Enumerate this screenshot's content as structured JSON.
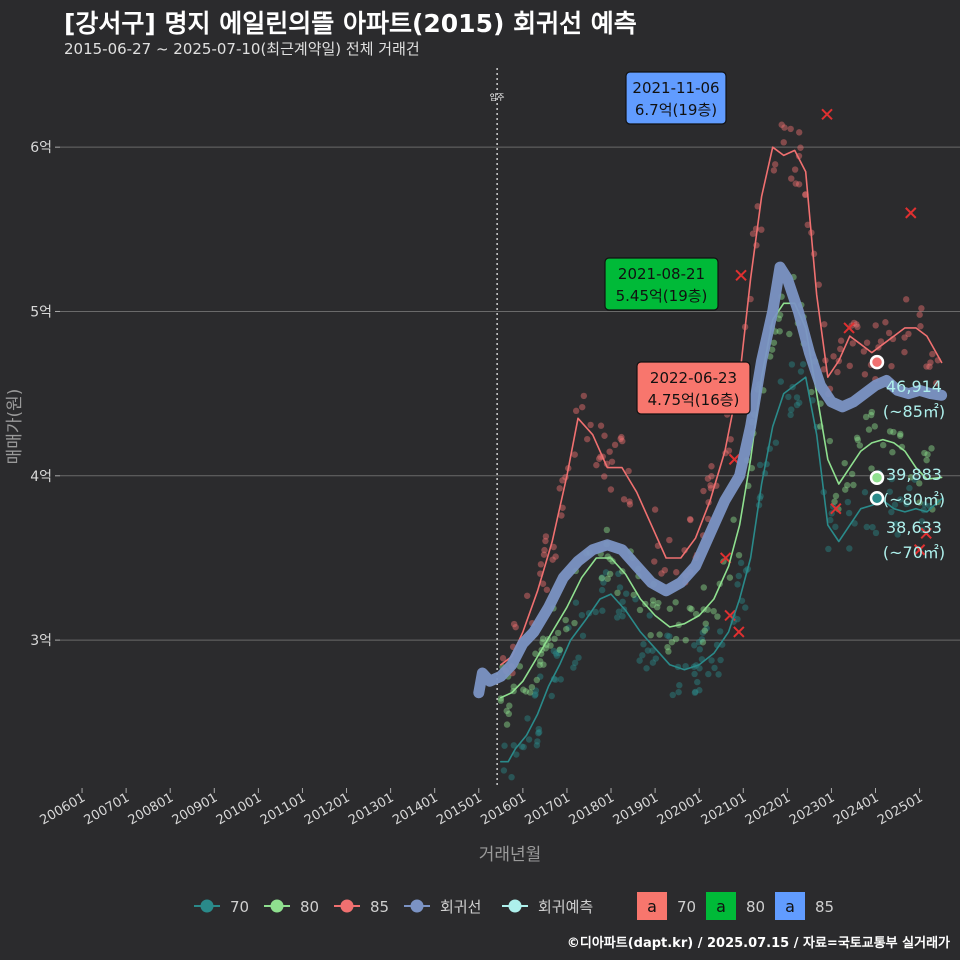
{
  "title": "[강서구] 명지 에일린의뜰 아파트(2015) 회귀선 예측",
  "subtitle": "2015-06-27 ~ 2025-07-10(최근계약일) 전체 거래건",
  "credit": "©디아파트(dapt.kr) / 2025.07.15 / 자료=국토교통부 실거래가",
  "colors": {
    "background": "#2b2b2d",
    "s70": "#2a8a8a",
    "s80": "#8fe08f",
    "s85": "#f07070",
    "regression": "#7b93c4",
    "forecast": "#aef0ec",
    "box70": "#f8766d",
    "box80": "#00ba38",
    "box85": "#619cff"
  },
  "chart_data": {
    "type": "line",
    "xlabel": "거래년월",
    "ylabel": "매매가(원)",
    "x_range": [
      "2005-07",
      "2025-12"
    ],
    "ylim": [
      2.1,
      6.5
    ],
    "y_ticks": [
      {
        "value": 3,
        "label": "3억"
      },
      {
        "value": 4,
        "label": "4억"
      },
      {
        "value": 5,
        "label": "5억"
      },
      {
        "value": 6,
        "label": "6억"
      }
    ],
    "x_ticks": [
      "200601",
      "200701",
      "200801",
      "200901",
      "201001",
      "201101",
      "201201",
      "201301",
      "201401",
      "201501",
      "201601",
      "201701",
      "201801",
      "201901",
      "202001",
      "202101",
      "202201",
      "202301",
      "202401",
      "202501"
    ],
    "event_line": {
      "date": "2015-06",
      "label": "입주"
    },
    "series": [
      {
        "name": "70",
        "color_key": "s70",
        "points": [
          [
            "2015-07",
            2.26
          ],
          [
            "2015-09",
            2.26
          ],
          [
            "2015-11",
            2.34
          ],
          [
            "2016-02",
            2.42
          ],
          [
            "2016-05",
            2.55
          ],
          [
            "2016-08",
            2.72
          ],
          [
            "2016-11",
            2.85
          ],
          [
            "2017-02",
            3.0
          ],
          [
            "2017-06",
            3.12
          ],
          [
            "2017-10",
            3.25
          ],
          [
            "2018-01",
            3.28
          ],
          [
            "2018-05",
            3.18
          ],
          [
            "2018-09",
            3.05
          ],
          [
            "2019-01",
            2.95
          ],
          [
            "2019-05",
            2.85
          ],
          [
            "2019-09",
            2.82
          ],
          [
            "2020-01",
            2.85
          ],
          [
            "2020-05",
            2.92
          ],
          [
            "2020-09",
            3.05
          ],
          [
            "2020-12",
            3.25
          ],
          [
            "2021-03",
            3.5
          ],
          [
            "2021-06",
            3.95
          ],
          [
            "2021-09",
            4.3
          ],
          [
            "2021-12",
            4.5
          ],
          [
            "2022-03",
            4.55
          ],
          [
            "2022-06",
            4.6
          ],
          [
            "2022-09",
            4.25
          ],
          [
            "2022-12",
            3.7
          ],
          [
            "2023-03",
            3.6
          ],
          [
            "2023-06",
            3.7
          ],
          [
            "2023-09",
            3.8
          ],
          [
            "2023-12",
            3.82
          ],
          [
            "2024-03",
            3.85
          ],
          [
            "2024-06",
            3.8
          ],
          [
            "2024-09",
            3.78
          ],
          [
            "2024-12",
            3.8
          ],
          [
            "2025-03",
            3.78
          ],
          [
            "2025-07",
            3.86
          ]
        ]
      },
      {
        "name": "80",
        "color_key": "s80",
        "points": [
          [
            "2015-07",
            2.65
          ],
          [
            "2015-10",
            2.68
          ],
          [
            "2016-01",
            2.75
          ],
          [
            "2016-05",
            2.9
          ],
          [
            "2016-09",
            3.05
          ],
          [
            "2017-01",
            3.2
          ],
          [
            "2017-05",
            3.38
          ],
          [
            "2017-09",
            3.5
          ],
          [
            "2018-01",
            3.5
          ],
          [
            "2018-05",
            3.4
          ],
          [
            "2018-09",
            3.25
          ],
          [
            "2019-01",
            3.15
          ],
          [
            "2019-05",
            3.08
          ],
          [
            "2019-09",
            3.1
          ],
          [
            "2020-01",
            3.15
          ],
          [
            "2020-05",
            3.25
          ],
          [
            "2020-09",
            3.45
          ],
          [
            "2020-12",
            3.7
          ],
          [
            "2021-03",
            4.1
          ],
          [
            "2021-06",
            4.6
          ],
          [
            "2021-09",
            4.95
          ],
          [
            "2021-12",
            5.05
          ],
          [
            "2022-03",
            5.05
          ],
          [
            "2022-06",
            4.9
          ],
          [
            "2022-09",
            4.5
          ],
          [
            "2022-12",
            4.1
          ],
          [
            "2023-03",
            3.95
          ],
          [
            "2023-06",
            4.05
          ],
          [
            "2023-09",
            4.15
          ],
          [
            "2023-12",
            4.2
          ],
          [
            "2024-03",
            4.22
          ],
          [
            "2024-06",
            4.2
          ],
          [
            "2024-09",
            4.15
          ],
          [
            "2024-12",
            4.05
          ],
          [
            "2025-03",
            3.98
          ],
          [
            "2025-07",
            3.99
          ]
        ]
      },
      {
        "name": "85",
        "color_key": "s85",
        "points": [
          [
            "2015-07",
            2.85
          ],
          [
            "2015-10",
            2.9
          ],
          [
            "2016-01",
            3.05
          ],
          [
            "2016-05",
            3.3
          ],
          [
            "2016-09",
            3.6
          ],
          [
            "2017-01",
            4.0
          ],
          [
            "2017-04",
            4.35
          ],
          [
            "2017-08",
            4.25
          ],
          [
            "2017-12",
            4.05
          ],
          [
            "2018-04",
            4.05
          ],
          [
            "2018-08",
            3.9
          ],
          [
            "2018-12",
            3.7
          ],
          [
            "2019-04",
            3.5
          ],
          [
            "2019-08",
            3.5
          ],
          [
            "2019-12",
            3.62
          ],
          [
            "2020-04",
            3.85
          ],
          [
            "2020-08",
            4.15
          ],
          [
            "2020-12",
            4.6
          ],
          [
            "2021-03",
            5.2
          ],
          [
            "2021-06",
            5.7
          ],
          [
            "2021-09",
            6.0
          ],
          [
            "2021-12",
            5.95
          ],
          [
            "2022-03",
            5.98
          ],
          [
            "2022-06",
            5.85
          ],
          [
            "2022-09",
            5.1
          ],
          [
            "2022-12",
            4.6
          ],
          [
            "2023-03",
            4.7
          ],
          [
            "2023-06",
            4.85
          ],
          [
            "2023-09",
            4.8
          ],
          [
            "2023-12",
            4.75
          ],
          [
            "2024-03",
            4.8
          ],
          [
            "2024-06",
            4.85
          ],
          [
            "2024-09",
            4.9
          ],
          [
            "2024-12",
            4.9
          ],
          [
            "2025-03",
            4.85
          ],
          [
            "2025-07",
            4.69
          ]
        ]
      },
      {
        "name": "회귀선",
        "color_key": "regression",
        "points": [
          [
            "2015-01",
            2.68
          ],
          [
            "2015-02",
            2.8
          ],
          [
            "2015-04",
            2.75
          ],
          [
            "2015-07",
            2.78
          ],
          [
            "2015-10",
            2.85
          ],
          [
            "2016-01",
            2.98
          ],
          [
            "2016-04",
            3.05
          ],
          [
            "2016-08",
            3.2
          ],
          [
            "2016-12",
            3.38
          ],
          [
            "2017-04",
            3.48
          ],
          [
            "2017-08",
            3.55
          ],
          [
            "2017-12",
            3.58
          ],
          [
            "2018-04",
            3.55
          ],
          [
            "2018-08",
            3.45
          ],
          [
            "2018-12",
            3.35
          ],
          [
            "2019-04",
            3.3
          ],
          [
            "2019-08",
            3.35
          ],
          [
            "2019-12",
            3.45
          ],
          [
            "2020-04",
            3.65
          ],
          [
            "2020-08",
            3.85
          ],
          [
            "2020-12",
            4.0
          ],
          [
            "2021-03",
            4.3
          ],
          [
            "2021-06",
            4.7
          ],
          [
            "2021-09",
            5.0
          ],
          [
            "2021-11",
            5.27
          ],
          [
            "2022-01",
            5.2
          ],
          [
            "2022-04",
            5.0
          ],
          [
            "2022-07",
            4.75
          ],
          [
            "2022-10",
            4.55
          ],
          [
            "2023-01",
            4.45
          ],
          [
            "2023-04",
            4.42
          ],
          [
            "2023-07",
            4.45
          ],
          [
            "2023-10",
            4.5
          ],
          [
            "2024-01",
            4.55
          ],
          [
            "2024-04",
            4.58
          ],
          [
            "2024-07",
            4.52
          ],
          [
            "2024-10",
            4.5
          ],
          [
            "2025-01",
            4.52
          ],
          [
            "2025-04",
            4.5
          ],
          [
            "2025-07",
            4.49
          ]
        ]
      }
    ],
    "scatter_summary": "individual trades 2015-2025, colored by size",
    "highlights": [
      {
        "date": "2021-11-06",
        "label1": "2021-11-06",
        "label2": "6.7억(19층)",
        "color_key": "box85"
      },
      {
        "date": "2021-08-21",
        "label1": "2021-08-21",
        "label2": "5.45억(19층)",
        "color_key": "box80"
      },
      {
        "date": "2022-06-23",
        "label1": "2022-06-23",
        "label2": "4.75억(16층)",
        "color_key": "box70"
      }
    ],
    "forecast_points": [
      {
        "size": "85",
        "value": 4.6914,
        "label1": "46,914",
        "label2": "(~85㎡)",
        "color_key": "s85"
      },
      {
        "size": "80",
        "value": 3.9883,
        "label1": "39,883",
        "label2": "(~80㎡)",
        "color_key": "s80"
      },
      {
        "size": "70",
        "value": 3.8633,
        "label1": "38,633",
        "label2": "(~70㎡)",
        "color_key": "s70"
      }
    ],
    "legend": {
      "position": "bottom",
      "line_items": [
        {
          "label": "70",
          "color_key": "s70"
        },
        {
          "label": "80",
          "color_key": "s80"
        },
        {
          "label": "85",
          "color_key": "s85"
        },
        {
          "label": "회귀선",
          "color_key": "regression"
        },
        {
          "label": "회귀예측",
          "color_key": "forecast"
        }
      ],
      "box_items": [
        {
          "glyph": "a",
          "label": "70",
          "color_key": "box70"
        },
        {
          "glyph": "a",
          "label": "80",
          "color_key": "box80"
        },
        {
          "glyph": "a",
          "label": "85",
          "color_key": "box85"
        }
      ]
    }
  }
}
